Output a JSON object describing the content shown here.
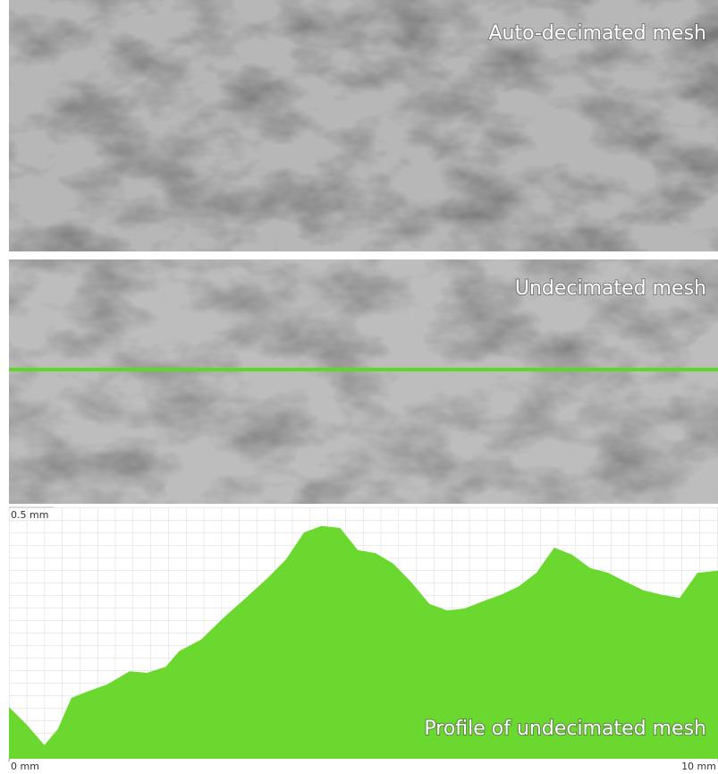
{
  "panels": [
    {
      "label": "Auto-decimated mesh"
    },
    {
      "label": "Undecimated mesh"
    }
  ],
  "chart_data": {
    "type": "area",
    "title": "Profile of undecimated mesh",
    "color": "#6ad82e",
    "x": [
      0,
      0.25,
      0.5,
      0.69,
      0.88,
      1.13,
      1.39,
      1.7,
      1.95,
      2.21,
      2.4,
      2.71,
      3.03,
      3.34,
      3.66,
      3.91,
      4.16,
      4.41,
      4.67,
      4.92,
      5.17,
      5.42,
      5.67,
      5.93,
      6.18,
      6.43,
      6.68,
      6.94,
      7.19,
      7.44,
      7.69,
      7.94,
      8.2,
      8.45,
      8.7,
      8.95,
      9.21,
      9.46,
      9.71,
      10
    ],
    "values": [
      0.103,
      0.068,
      0.027,
      0.059,
      0.121,
      0.135,
      0.148,
      0.174,
      0.171,
      0.183,
      0.214,
      0.237,
      0.281,
      0.32,
      0.361,
      0.397,
      0.45,
      0.463,
      0.459,
      0.415,
      0.409,
      0.388,
      0.352,
      0.308,
      0.295,
      0.299,
      0.313,
      0.326,
      0.343,
      0.37,
      0.42,
      0.406,
      0.379,
      0.37,
      0.352,
      0.335,
      0.326,
      0.32,
      0.37,
      0.374
    ],
    "xlim": [
      0,
      10
    ],
    "xticks": [
      {
        "value": 0,
        "label": "0 mm"
      },
      {
        "value": 10,
        "label": "10 mm"
      }
    ],
    "ylim": [
      0,
      0.5
    ],
    "yticks": [
      {
        "value": 0.5,
        "label": "0.5 mm"
      }
    ]
  }
}
